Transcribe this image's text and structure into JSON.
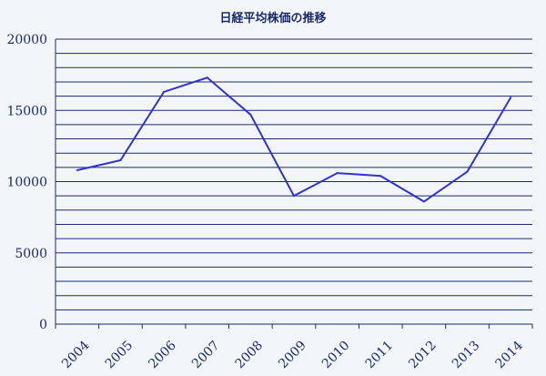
{
  "chart_data": {
    "type": "line",
    "title": "日経平均株価の推移",
    "xlabel": "",
    "ylabel": "",
    "categories": [
      "2004",
      "2005",
      "2006",
      "2007",
      "2008",
      "2009",
      "2010",
      "2011",
      "2012",
      "2013",
      "2014"
    ],
    "series": [
      {
        "values": [
          10800,
          11500,
          16300,
          17300,
          14700,
          9000,
          10600,
          10400,
          8600,
          10700,
          15900
        ]
      }
    ],
    "ylim": [
      0,
      20000
    ],
    "yticks": [
      "20000",
      "15000",
      "10000",
      "5000",
      "0"
    ],
    "grid": true,
    "legend": "none",
    "colors": {
      "line": "#3333cc",
      "axis": "#1a2a6b",
      "grid": "#1a2a6b",
      "background": "#f2f6fb"
    }
  }
}
